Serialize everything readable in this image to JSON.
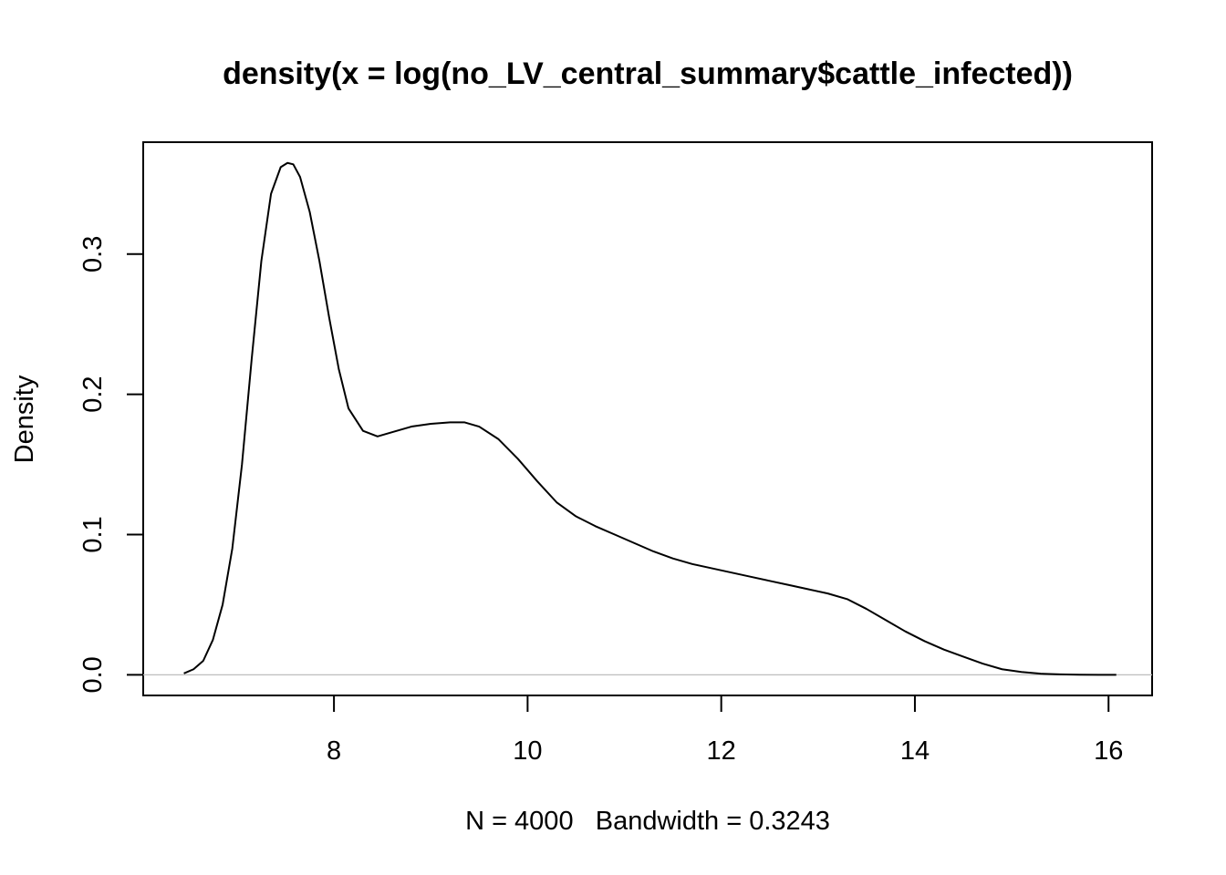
{
  "chart_data": {
    "type": "line",
    "title": "density(x = log(no_LV_central_summary$cattle_infected))",
    "xlabel": "N = 4000   Bandwidth = 0.3243",
    "ylabel": "Density",
    "xlim": [
      6.03,
      16.45
    ],
    "ylim": [
      -0.0147,
      0.3798
    ],
    "x_ticks": [
      8,
      10,
      12,
      14,
      16
    ],
    "y_ticks": [
      0.0,
      0.1,
      0.2,
      0.3
    ],
    "x_tick_labels": [
      "8",
      "10",
      "12",
      "14",
      "16"
    ],
    "y_tick_labels": [
      "0.0",
      "0.1",
      "0.2",
      "0.3"
    ],
    "zero_line": true,
    "grid": false,
    "series": [
      {
        "x": [
          6.45,
          6.55,
          6.65,
          6.75,
          6.85,
          6.95,
          7.05,
          7.15,
          7.25,
          7.35,
          7.45,
          7.52,
          7.58,
          7.65,
          7.75,
          7.85,
          7.95,
          8.05,
          8.15,
          8.3,
          8.45,
          8.6,
          8.8,
          9.0,
          9.2,
          9.35,
          9.5,
          9.7,
          9.9,
          10.1,
          10.3,
          10.5,
          10.7,
          10.9,
          11.1,
          11.3,
          11.5,
          11.7,
          11.9,
          12.1,
          12.3,
          12.5,
          12.7,
          12.9,
          13.1,
          13.3,
          13.5,
          13.7,
          13.9,
          14.1,
          14.3,
          14.5,
          14.7,
          14.9,
          15.1,
          15.3,
          15.5,
          15.7,
          15.9,
          16.08
        ],
        "y": [
          0.001,
          0.004,
          0.01,
          0.025,
          0.05,
          0.09,
          0.15,
          0.225,
          0.295,
          0.343,
          0.362,
          0.365,
          0.364,
          0.355,
          0.33,
          0.295,
          0.255,
          0.218,
          0.19,
          0.174,
          0.17,
          0.173,
          0.177,
          0.179,
          0.18,
          0.18,
          0.177,
          0.168,
          0.154,
          0.138,
          0.123,
          0.113,
          0.106,
          0.1,
          0.094,
          0.088,
          0.083,
          0.079,
          0.076,
          0.073,
          0.07,
          0.067,
          0.064,
          0.061,
          0.058,
          0.054,
          0.047,
          0.039,
          0.031,
          0.024,
          0.018,
          0.013,
          0.008,
          0.004,
          0.002,
          0.0008,
          0.0003,
          0.0001,
          0.0,
          0.0
        ]
      }
    ]
  }
}
